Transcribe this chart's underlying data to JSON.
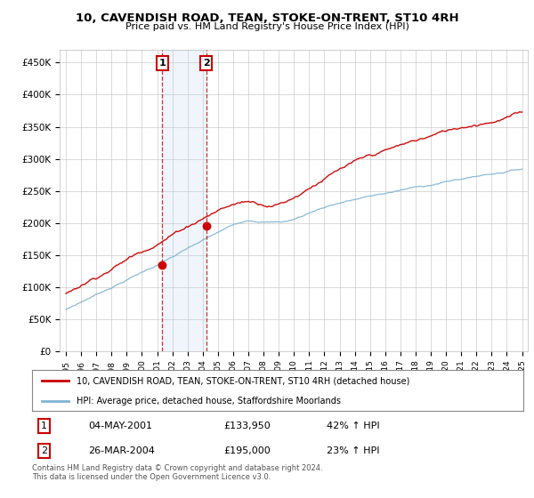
{
  "title": "10, CAVENDISH ROAD, TEAN, STOKE-ON-TRENT, ST10 4RH",
  "subtitle": "Price paid vs. HM Land Registry's House Price Index (HPI)",
  "ylabel_ticks": [
    "£0",
    "£50K",
    "£100K",
    "£150K",
    "£200K",
    "£250K",
    "£300K",
    "£350K",
    "£400K",
    "£450K"
  ],
  "ytick_values": [
    0,
    50000,
    100000,
    150000,
    200000,
    250000,
    300000,
    350000,
    400000,
    450000
  ],
  "ylim": [
    0,
    470000
  ],
  "xlim_start": 1994.6,
  "xlim_end": 2025.4,
  "purchase1_x": 2001.34,
  "purchase1_y": 133950,
  "purchase1_label": "1",
  "purchase2_x": 2004.23,
  "purchase2_y": 195000,
  "purchase2_label": "2",
  "red_line_color": "#cc0000",
  "blue_line_color": "#7fb3d3",
  "highlight_rect_color": "#ddeeff",
  "legend_line1": "10, CAVENDISH ROAD, TEAN, STOKE-ON-TRENT, ST10 4RH (detached house)",
  "legend_line2": "HPI: Average price, detached house, Staffordshire Moorlands",
  "table_row1": [
    "1",
    "04-MAY-2001",
    "£133,950",
    "42% ↑ HPI"
  ],
  "table_row2": [
    "2",
    "26-MAR-2004",
    "£195,000",
    "23% ↑ HPI"
  ],
  "footer": "Contains HM Land Registry data © Crown copyright and database right 2024.\nThis data is licensed under the Open Government Licence v3.0.",
  "background_color": "#ffffff",
  "grid_color": "#cccccc"
}
